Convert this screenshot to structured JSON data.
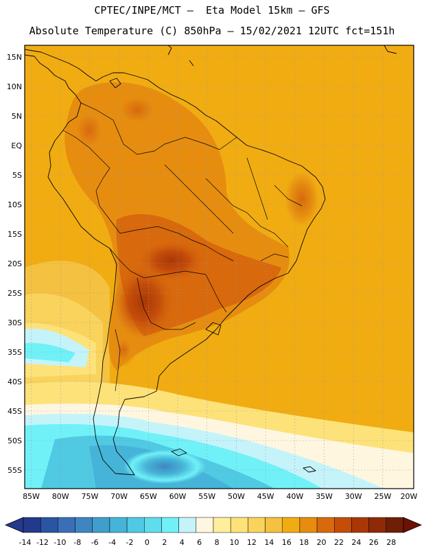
{
  "header": {
    "line1": "CPTEC/INPE/MCT –  Eta Model 15km – GFS",
    "line2": "Absolute Temperature (C) 850hPa – 15/02/2021 12UTC fct=151h"
  },
  "axes": {
    "lat_labels": [
      "15N",
      "10N",
      "5N",
      "EQ",
      "5S",
      "10S",
      "15S",
      "20S",
      "25S",
      "30S",
      "35S",
      "40S",
      "45S",
      "50S",
      "55S"
    ],
    "lon_labels": [
      "85W",
      "80W",
      "75W",
      "70W",
      "65W",
      "60W",
      "55W",
      "50W",
      "45W",
      "40W",
      "35W",
      "30W",
      "25W",
      "20W"
    ]
  },
  "colorbar": {
    "labels": [
      "-14",
      "-12",
      "-10",
      "-8",
      "-6",
      "-4",
      "-2",
      "0",
      "2",
      "4",
      "6",
      "8",
      "10",
      "12",
      "14",
      "16",
      "18",
      "20",
      "22",
      "24",
      "26",
      "28"
    ],
    "colors": [
      "#233a8c",
      "#2a55a3",
      "#3a6fb8",
      "#3e86c2",
      "#3f9ecc",
      "#45b4d8",
      "#50c9e3",
      "#5fdcee",
      "#70f1f8",
      "#c5f3fa",
      "#fff6e0",
      "#ffef9c",
      "#fde27a",
      "#f9d35c",
      "#f4c140",
      "#f1ac12",
      "#e68d10",
      "#d8690c",
      "#c44d0a",
      "#a93806",
      "#8e2a06",
      "#6e1f06"
    ],
    "low_end_color": "#233a8c",
    "high_end_color": "#6e1004"
  }
}
